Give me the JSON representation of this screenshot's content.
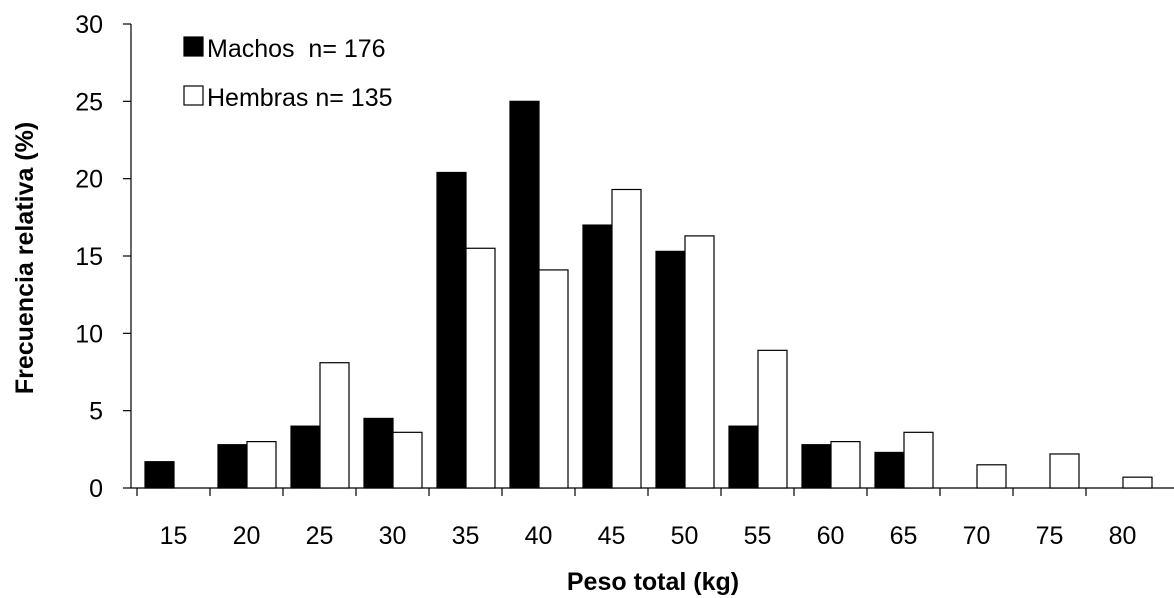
{
  "chart_data": {
    "type": "bar",
    "title": "",
    "xlabel": "Peso total (kg)",
    "ylabel": "Frecuencia relativa (%)",
    "categories": [
      "15",
      "20",
      "25",
      "30",
      "35",
      "40",
      "45",
      "50",
      "55",
      "60",
      "65",
      "70",
      "75",
      "80"
    ],
    "ylim": [
      0,
      30
    ],
    "yticks": [
      "0",
      "5",
      "10",
      "15",
      "20",
      "25",
      "30"
    ],
    "grid": false,
    "legend_position": "top-left",
    "series": [
      {
        "name": "Machos  n= 176",
        "color": "#000000",
        "values": [
          1.7,
          2.8,
          4.0,
          4.5,
          20.4,
          25.0,
          17.0,
          15.3,
          4.0,
          2.8,
          2.3,
          0,
          0,
          0
        ]
      },
      {
        "name": "Hembras n= 135",
        "color": "#ffffff",
        "values": [
          0,
          3.0,
          8.1,
          3.6,
          15.5,
          14.1,
          19.3,
          16.3,
          8.9,
          3.0,
          3.6,
          1.5,
          2.2,
          0.7
        ]
      }
    ]
  }
}
